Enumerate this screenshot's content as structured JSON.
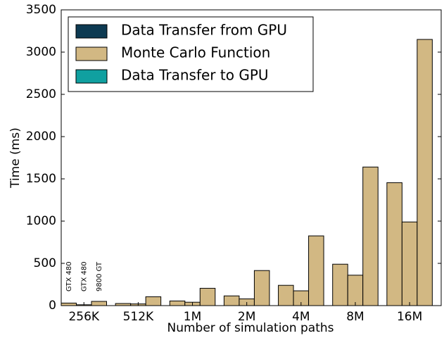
{
  "chart_data": {
    "type": "bar",
    "stacked": true,
    "xlabel": "Number of simulation paths",
    "ylabel": "Time (ms)",
    "categories": [
      "256K",
      "512K",
      "1M",
      "2M",
      "4M",
      "8M",
      "16M"
    ],
    "bar_labels": [
      "GTX 480",
      "GTX 480",
      "9800 GT"
    ],
    "series": [
      {
        "name": "Data Transfer from GPU",
        "color": "#0d3a52",
        "values": [
          [
            0,
            0,
            0
          ],
          [
            0,
            0,
            0
          ],
          [
            0,
            0,
            0
          ],
          [
            0,
            0,
            0
          ],
          [
            0,
            0,
            0
          ],
          [
            0,
            0,
            0
          ],
          [
            0,
            0,
            0
          ]
        ]
      },
      {
        "name": "Monte Carlo Function",
        "color": "#d2b883",
        "values": [
          [
            30,
            10,
            50
          ],
          [
            25,
            20,
            105
          ],
          [
            55,
            40,
            205
          ],
          [
            115,
            80,
            415
          ],
          [
            240,
            175,
            825
          ],
          [
            490,
            360,
            1640
          ],
          [
            1455,
            990,
            3150
          ]
        ]
      },
      {
        "name": "Data Transfer to GPU",
        "color": "#10a0a0",
        "values": [
          [
            0,
            0,
            0
          ],
          [
            0,
            0,
            0
          ],
          [
            0,
            0,
            0
          ],
          [
            0,
            0,
            0
          ],
          [
            0,
            0,
            0
          ],
          [
            0,
            0,
            0
          ],
          [
            0,
            0,
            0
          ]
        ]
      }
    ],
    "ylim": [
      0,
      3500
    ],
    "yticks": [
      0,
      500,
      1000,
      1500,
      2000,
      2500,
      3000,
      3500
    ],
    "legend": "upper-left"
  }
}
